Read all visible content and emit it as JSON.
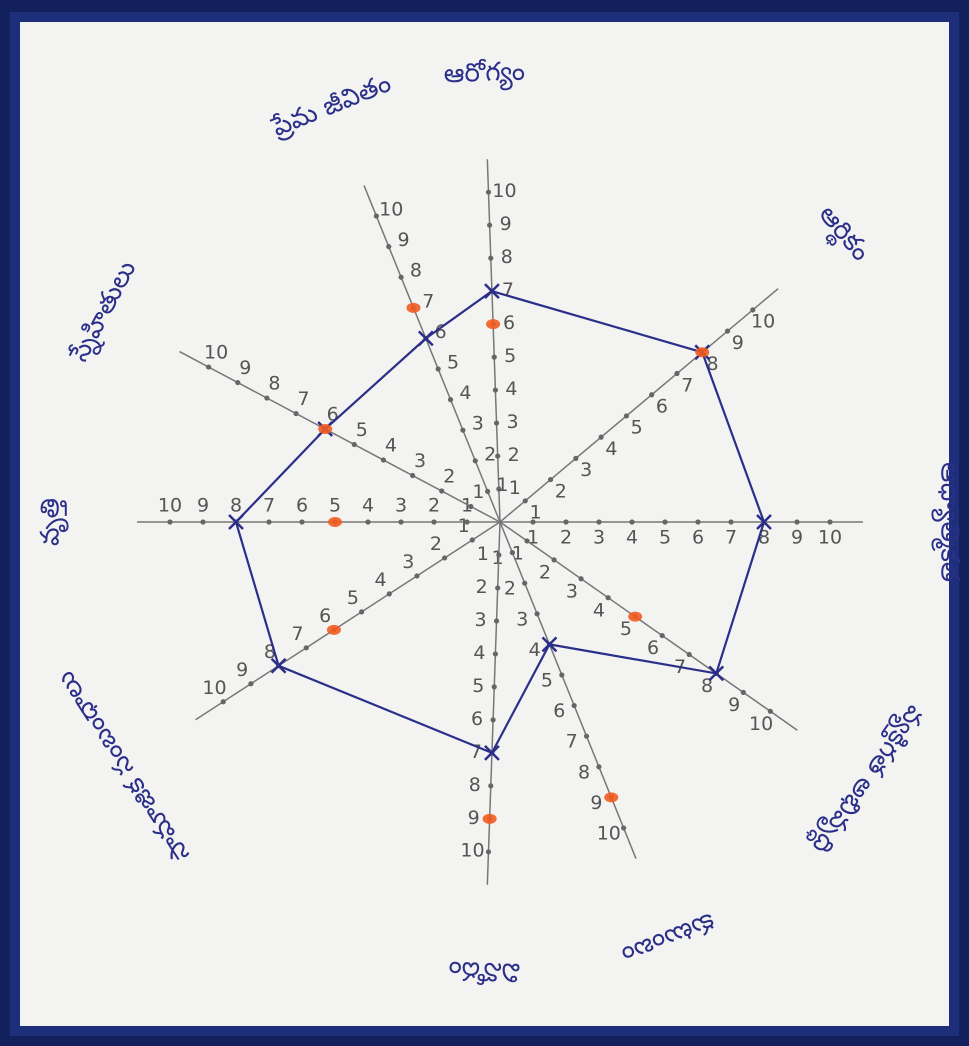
{
  "chart_data": {
    "type": "radar",
    "categories": [
      "ఆరోగ్యం",
      "ఆర్థికం",
      "ఆధ్యాత్మికత",
      "వ్యక్తిగత అభివృద్ధి",
      "కుటుంబం",
      "వినోదం",
      "సామాజిక సంబంధాలు",
      "వృత్తి",
      "స్నేహితులు",
      "ప్రేమ జీవితం"
    ],
    "series": [
      {
        "color": "#2b2f8a",
        "values": [
          7,
          8,
          8,
          8,
          4,
          7,
          8,
          8,
          6,
          6
        ]
      },
      {
        "color": "#f25c1f",
        "values": [
          6,
          8,
          null,
          5,
          9,
          9,
          6,
          5,
          6,
          7
        ]
      }
    ],
    "rlim": [
      0,
      10
    ],
    "rticks": [
      1,
      2,
      3,
      4,
      5,
      6,
      7,
      8,
      9,
      10
    ]
  }
}
